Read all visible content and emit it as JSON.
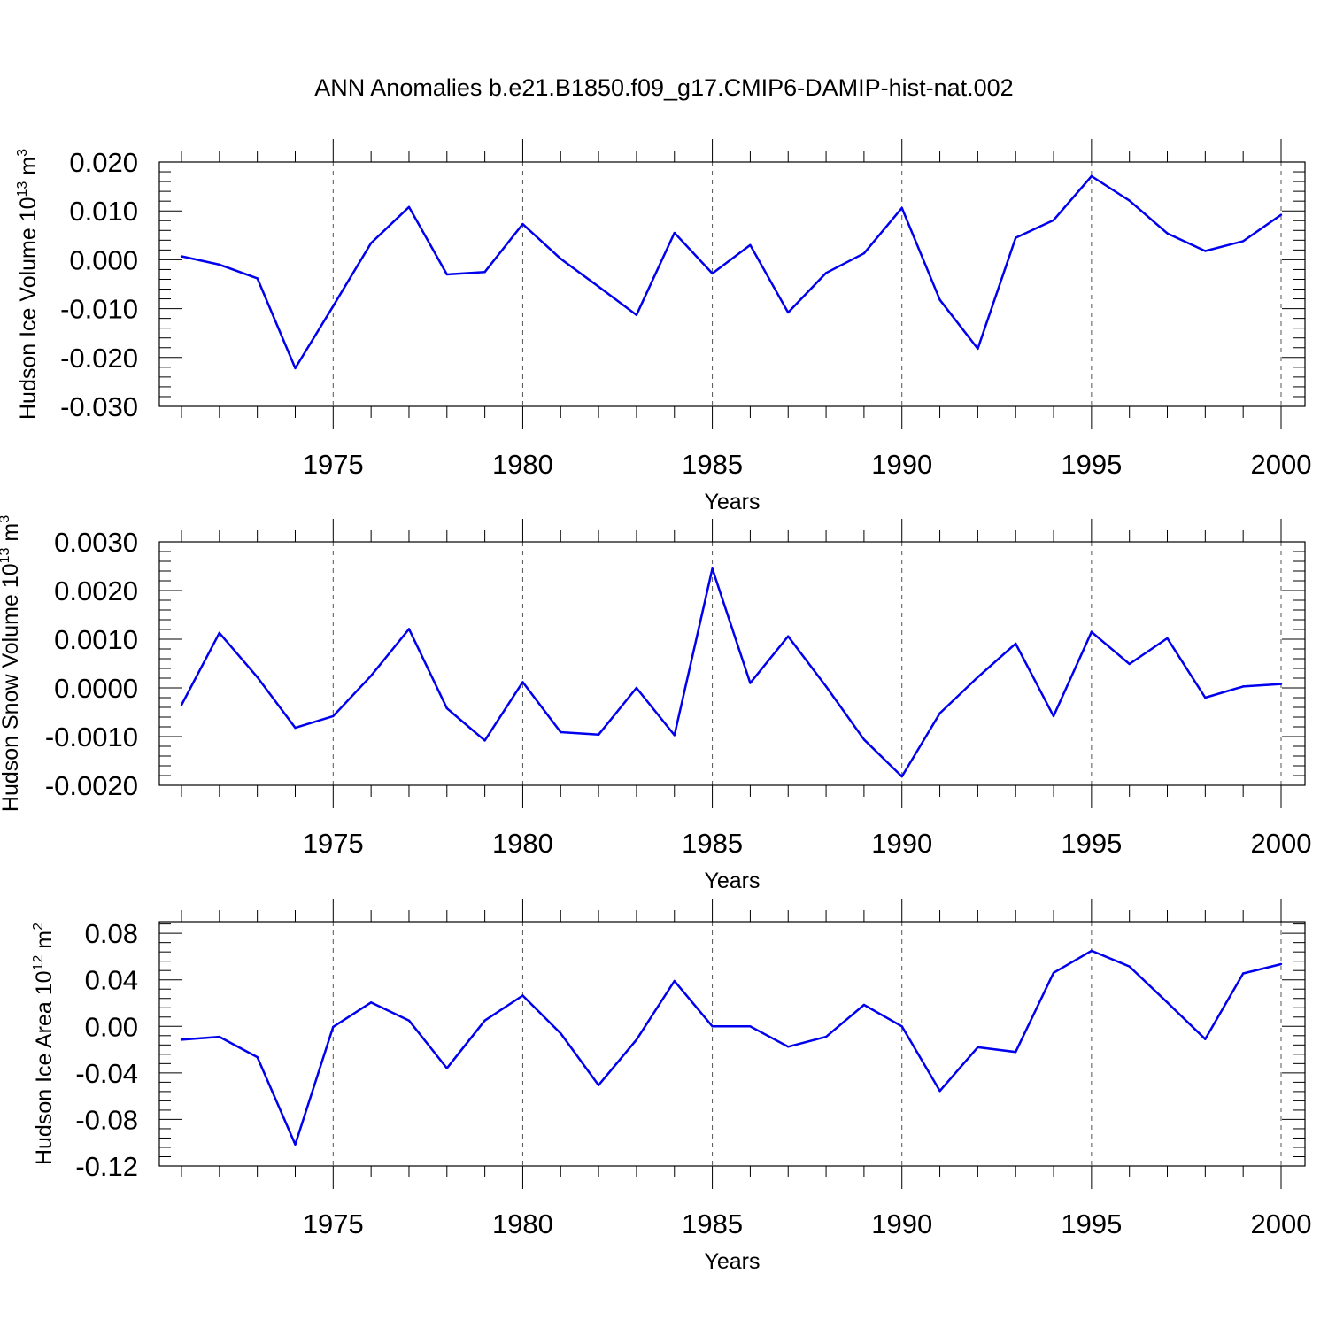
{
  "title": "ANN Anomalies b.e21.B1850.f09_g17.CMIP6-DAMIP-hist-nat.002",
  "chart_data": [
    {
      "type": "line",
      "xlabel": "Years",
      "ylabel": "Hudson Ice Volume 10",
      "ylabel_exp": "13",
      "ylabel_unit": "m",
      "ylabel_unit_exp": "3",
      "xlim": [
        1971,
        2000
      ],
      "ylim": [
        -0.03,
        0.02
      ],
      "yticks": [
        "-0.030",
        "-0.020",
        "-0.010",
        "0.000",
        "0.010",
        "0.020"
      ],
      "xticks": [
        "1975",
        "1980",
        "1985",
        "1990",
        "1995",
        "2000"
      ],
      "grid": "vertical dashed at major x ticks",
      "line_color": "#0000ee",
      "x": [
        1971,
        1972,
        1973,
        1974,
        1975,
        1976,
        1977,
        1978,
        1979,
        1980,
        1981,
        1982,
        1983,
        1984,
        1985,
        1986,
        1987,
        1988,
        1989,
        1990,
        1991,
        1992,
        1993,
        1994,
        1995,
        1996,
        1997,
        1998,
        1999,
        2000
      ],
      "values": [
        0.0007,
        -0.001,
        -0.0038,
        -0.0222,
        -0.0095,
        0.0034,
        0.0108,
        -0.003,
        -0.0025,
        0.0073,
        0.0002,
        -0.0055,
        -0.0113,
        0.0055,
        -0.0028,
        0.003,
        -0.0108,
        -0.0027,
        0.0013,
        0.0106,
        -0.0082,
        -0.0182,
        0.0045,
        0.0081,
        0.0171,
        0.0121,
        0.0054,
        0.0018,
        0.0038,
        0.0092
      ]
    },
    {
      "type": "line",
      "xlabel": "Years",
      "ylabel": "Hudson Snow Volume 10",
      "ylabel_exp": "13",
      "ylabel_unit": "m",
      "ylabel_unit_exp": "3",
      "xlim": [
        1971,
        2000
      ],
      "ylim": [
        -0.002,
        0.003
      ],
      "yticks": [
        "-0.0020",
        "-0.0010",
        "0.0000",
        "0.0010",
        "0.0020",
        "0.0030"
      ],
      "xticks": [
        "1975",
        "1980",
        "1985",
        "1990",
        "1995",
        "2000"
      ],
      "grid": "vertical dashed at major x ticks",
      "line_color": "#0000ee",
      "x": [
        1971,
        1972,
        1973,
        1974,
        1975,
        1976,
        1977,
        1978,
        1979,
        1980,
        1981,
        1982,
        1983,
        1984,
        1985,
        1986,
        1987,
        1988,
        1989,
        1990,
        1991,
        1992,
        1993,
        1994,
        1995,
        1996,
        1997,
        1998,
        1999,
        2000
      ],
      "values": [
        -0.00035,
        0.00113,
        0.00022,
        -0.00082,
        -0.00058,
        0.00025,
        0.00121,
        -0.00042,
        -0.00108,
        0.00012,
        -0.00091,
        -0.00096,
        0.0,
        -0.00097,
        0.00245,
        0.0001,
        0.00106,
        3e-05,
        -0.00106,
        -0.00182,
        -0.00052,
        0.00022,
        0.00091,
        -0.00058,
        0.00115,
        0.00049,
        0.00102,
        -0.0002,
        3e-05,
        8e-05
      ]
    },
    {
      "type": "line",
      "xlabel": "Years",
      "ylabel": "Hudson Ice Area 10",
      "ylabel_exp": "12",
      "ylabel_unit": "m",
      "ylabel_unit_exp": "2",
      "xlim": [
        1971,
        2000
      ],
      "ylim": [
        -0.12,
        0.09
      ],
      "yticks": [
        "-0.12",
        "-0.08",
        "-0.04",
        "0.00",
        "0.04",
        "0.08"
      ],
      "xticks": [
        "1975",
        "1980",
        "1985",
        "1990",
        "1995",
        "2000"
      ],
      "grid": "vertical dashed at major x ticks",
      "line_color": "#0000ee",
      "x": [
        1971,
        1972,
        1973,
        1974,
        1975,
        1976,
        1977,
        1978,
        1979,
        1980,
        1981,
        1982,
        1983,
        1984,
        1985,
        1986,
        1987,
        1988,
        1989,
        1990,
        1991,
        1992,
        1993,
        1994,
        1995,
        1996,
        1997,
        1998,
        1999,
        2000
      ],
      "values": [
        -0.0115,
        -0.009,
        -0.0265,
        -0.1015,
        -0.0005,
        0.0205,
        0.005,
        -0.036,
        0.005,
        0.0265,
        -0.006,
        -0.0505,
        -0.0115,
        0.039,
        0.0,
        0.0,
        -0.0175,
        -0.009,
        0.0185,
        0.0,
        -0.0555,
        -0.018,
        -0.022,
        0.046,
        0.065,
        0.0515,
        0.0205,
        -0.011,
        0.0455,
        0.0535
      ]
    }
  ]
}
